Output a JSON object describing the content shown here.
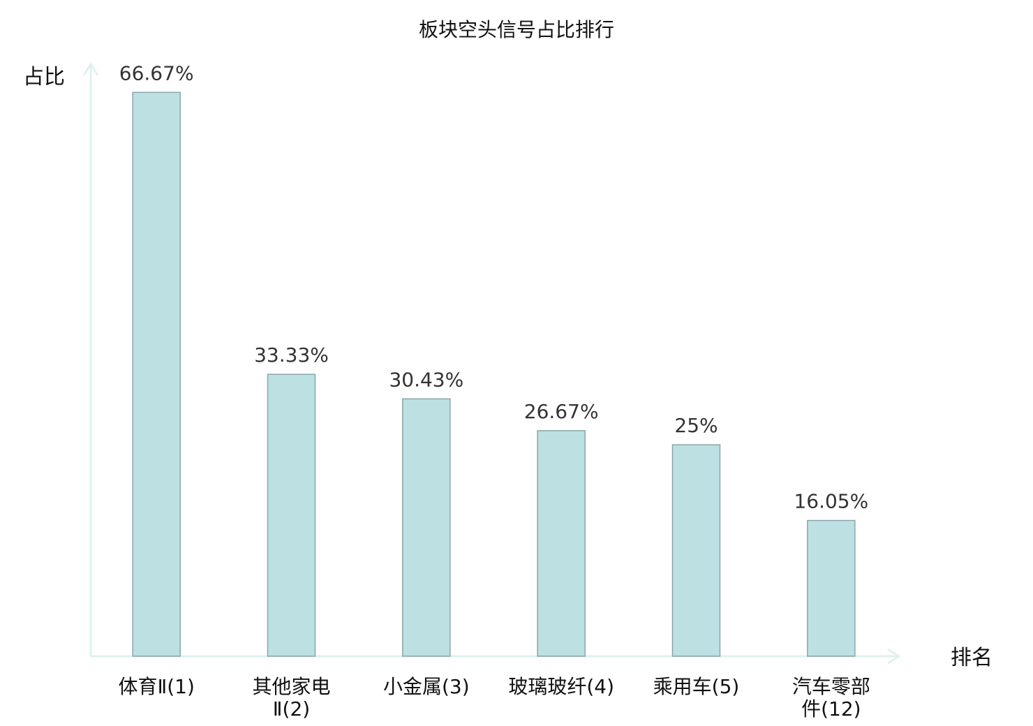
{
  "chart_data": {
    "type": "bar",
    "title": "板块空头信号占比排行",
    "xlabel": "排名",
    "ylabel": "占比",
    "categories": [
      [
        "体育Ⅱ(1)"
      ],
      [
        "其他家电",
        "Ⅱ(2)"
      ],
      [
        "小金属(3)"
      ],
      [
        "玻璃玻纤(4)"
      ],
      [
        "乘用车(5)"
      ],
      [
        "汽车零部",
        "件(12)"
      ]
    ],
    "values": [
      66.67,
      33.33,
      30.43,
      26.67,
      25,
      16.05
    ],
    "value_labels": [
      "66.67%",
      "33.33%",
      "30.43%",
      "26.67%",
      "25%",
      "16.05%"
    ],
    "highlight_index": 5,
    "ylim": [
      0,
      70
    ],
    "grid": false,
    "legend": "none",
    "colors": {
      "bar_fill": "#bde0e3",
      "bar_stroke": "#8aa6a8",
      "axis": "#dff1ee",
      "label": "#111111",
      "value_label": "#333333",
      "highlight": "#e0201a"
    }
  }
}
